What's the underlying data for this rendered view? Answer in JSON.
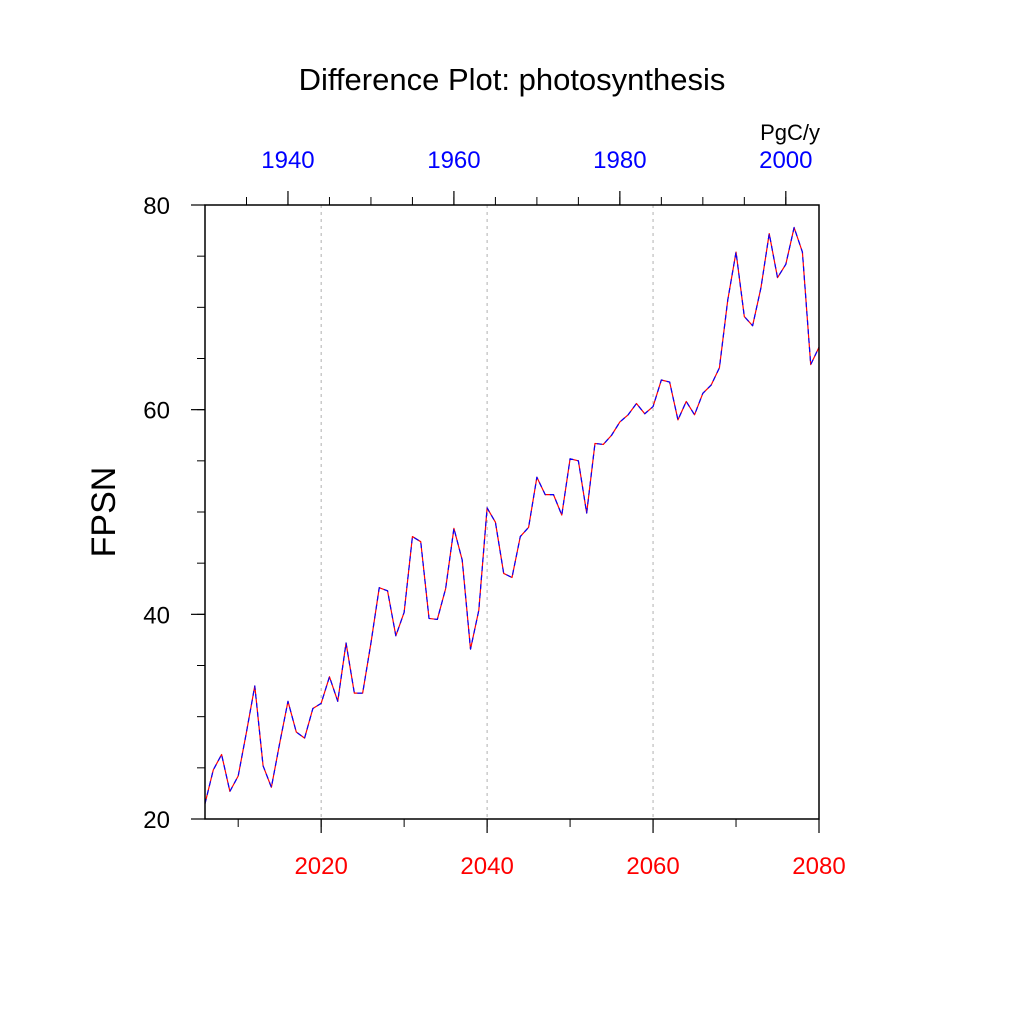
{
  "chart_data": {
    "type": "line",
    "title": "Difference Plot: photosynthesis",
    "units": "PgC/y",
    "ylabel": "FPSN",
    "xlabel": "",
    "ylim": [
      20,
      80
    ],
    "xlim": [
      2006,
      2080
    ],
    "x_top_lim": [
      1930,
      2004
    ],
    "grid": "vertical dotted lines at bottom-axis major ticks",
    "yticks": [
      20,
      40,
      60,
      80
    ],
    "yticks_labels": [
      "20",
      "40",
      "60",
      "80"
    ],
    "xticks_bottom": [
      2020,
      2040,
      2060,
      2080
    ],
    "xticks_bottom_labels": [
      "2020",
      "2040",
      "2060",
      "2080"
    ],
    "xticks_top": [
      1940,
      1960,
      1980,
      2000
    ],
    "xticks_top_labels": [
      "1940",
      "1960",
      "1980",
      "2000"
    ],
    "colors": {
      "bottom_axis": "#ff0000",
      "top_axis": "#0000ff",
      "series_a": "#ff0000",
      "series_b": "#0000ff"
    },
    "x": [
      2006,
      2007,
      2008,
      2009,
      2010,
      2011,
      2012,
      2013,
      2014,
      2015,
      2016,
      2017,
      2018,
      2019,
      2020,
      2021,
      2022,
      2023,
      2024,
      2025,
      2026,
      2027,
      2028,
      2029,
      2030,
      2031,
      2032,
      2033,
      2034,
      2035,
      2036,
      2037,
      2038,
      2039,
      2040,
      2041,
      2042,
      2043,
      2044,
      2045,
      2046,
      2047,
      2048,
      2049,
      2050,
      2051,
      2052,
      2053,
      2054,
      2055,
      2056,
      2057,
      2058,
      2059,
      2060,
      2061,
      2062,
      2063,
      2064,
      2065,
      2066,
      2067,
      2068,
      2069,
      2070,
      2071,
      2072,
      2073,
      2074,
      2075,
      2076,
      2077,
      2078,
      2079,
      2080
    ],
    "series": [
      {
        "values": [
          21.5,
          24.8,
          26.3,
          22.7,
          24.2,
          28.5,
          33.0,
          25.2,
          23.1,
          27.4,
          31.5,
          28.5,
          27.9,
          30.8,
          31.3,
          33.9,
          31.5,
          37.2,
          32.3,
          32.3,
          37.2,
          42.6,
          42.3,
          37.9,
          40.2,
          47.6,
          47.1,
          39.6,
          39.5,
          42.5,
          48.4,
          45.3,
          36.6,
          40.4,
          50.4,
          49.0,
          44.0,
          43.6,
          47.6,
          48.5,
          53.4,
          51.7,
          51.7,
          49.7,
          55.2,
          55.0,
          49.9,
          56.7,
          56.6,
          57.5,
          58.8,
          59.5,
          60.6,
          59.6,
          60.3,
          62.9,
          62.7,
          59.0,
          60.8,
          59.5,
          61.6,
          62.4,
          64.1,
          70.7,
          75.4,
          69.1,
          68.2,
          71.9,
          77.2,
          72.9,
          74.2,
          77.8,
          75.4,
          64.4,
          66.1
        ],
        "color": "#ff0000"
      },
      {
        "values": [
          21.5,
          24.8,
          26.3,
          22.7,
          24.2,
          28.5,
          33.0,
          25.2,
          23.1,
          27.4,
          31.5,
          28.5,
          27.9,
          30.8,
          31.3,
          33.9,
          31.5,
          37.2,
          32.3,
          32.3,
          37.2,
          42.6,
          42.3,
          37.9,
          40.2,
          47.6,
          47.1,
          39.6,
          39.5,
          42.5,
          48.4,
          45.3,
          36.6,
          40.4,
          50.4,
          49.0,
          44.0,
          43.6,
          47.6,
          48.5,
          53.4,
          51.7,
          51.7,
          49.7,
          55.2,
          55.0,
          49.9,
          56.7,
          56.6,
          57.5,
          58.8,
          59.5,
          60.6,
          59.6,
          60.3,
          62.9,
          62.7,
          59.0,
          60.8,
          59.5,
          61.6,
          62.4,
          64.1,
          70.7,
          75.4,
          69.1,
          68.2,
          71.9,
          77.2,
          72.9,
          74.2,
          77.8,
          75.4,
          64.4,
          66.1
        ],
        "color": "#0000ff"
      }
    ]
  }
}
